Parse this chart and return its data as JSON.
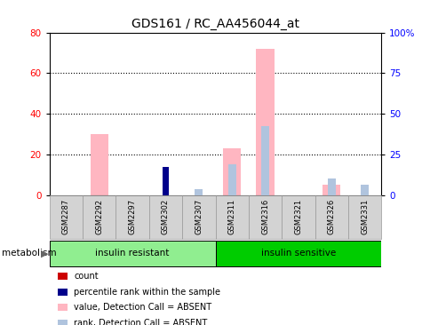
{
  "title": "GDS161 / RC_AA456044_at",
  "samples": [
    "GSM2287",
    "GSM2292",
    "GSM2297",
    "GSM2302",
    "GSM2307",
    "GSM2311",
    "GSM2316",
    "GSM2321",
    "GSM2326",
    "GSM2331"
  ],
  "value_absent": [
    0,
    30,
    0,
    0,
    0,
    23,
    72,
    0,
    5,
    0
  ],
  "rank_absent": [
    0,
    0,
    0,
    0,
    3,
    15,
    34,
    0,
    8,
    5
  ],
  "count": [
    0,
    0,
    0,
    12,
    0,
    0,
    0,
    0,
    0,
    0
  ],
  "percentile_rank": [
    0,
    0,
    0,
    14,
    0,
    0,
    0,
    0,
    0,
    0
  ],
  "ylim_left": [
    0,
    80
  ],
  "ylim_right": [
    0,
    100
  ],
  "yticks_left": [
    0,
    20,
    40,
    60,
    80
  ],
  "yticks_right": [
    0,
    25,
    50,
    75,
    100
  ],
  "yticklabels_right": [
    "0",
    "25",
    "50",
    "75",
    "100%"
  ],
  "color_value_absent": "#FFB6C1",
  "color_rank_absent": "#B0C4DE",
  "color_count": "#CC0000",
  "color_percentile": "#00008B",
  "group1_label": "insulin resistant",
  "group2_label": "insulin sensitive",
  "group1_indices": [
    0,
    1,
    2,
    3,
    4
  ],
  "group2_indices": [
    5,
    6,
    7,
    8,
    9
  ],
  "group1_color": "#90EE90",
  "group2_color": "#00CC00",
  "metabolism_label": "metabolism",
  "legend_items": [
    {
      "label": "count",
      "color": "#CC0000"
    },
    {
      "label": "percentile rank within the sample",
      "color": "#00008B"
    },
    {
      "label": "value, Detection Call = ABSENT",
      "color": "#FFB6C1"
    },
    {
      "label": "rank, Detection Call = ABSENT",
      "color": "#B0C4DE"
    }
  ],
  "bar_width": 0.55,
  "tick_area_color": "#D3D3D3",
  "tick_border_color": "#999999"
}
